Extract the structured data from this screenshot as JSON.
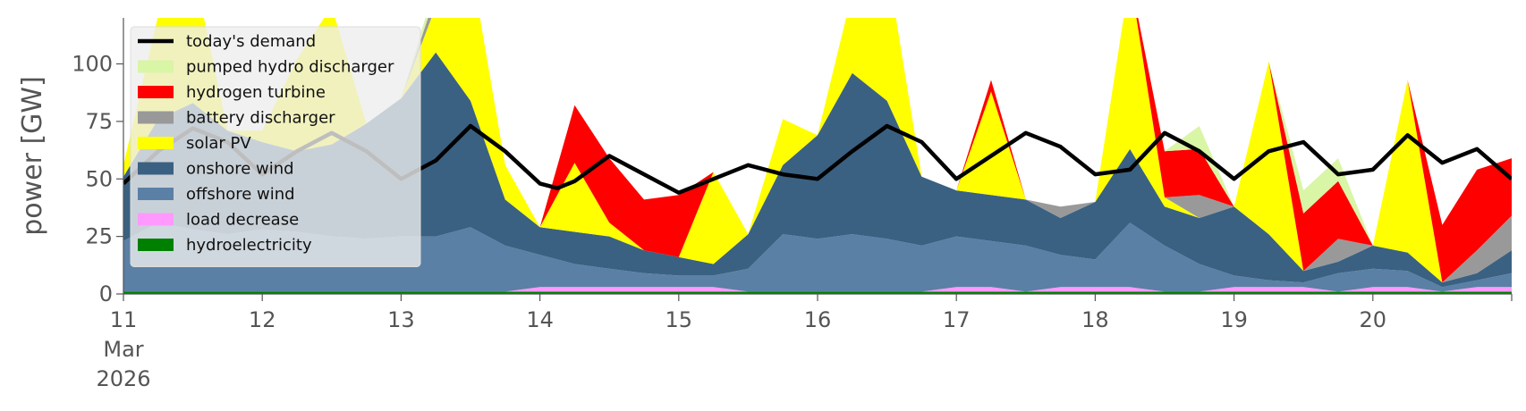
{
  "chart_data": {
    "type": "area",
    "ylabel": "power [GW]",
    "xlabel": "",
    "ylim": [
      0,
      120
    ],
    "xlim_days": [
      0,
      10
    ],
    "x_unit": "days since 11 Mar 2026, 00:00",
    "y_ticks": [
      0,
      25,
      50,
      75,
      100
    ],
    "x_ticks": [
      {
        "day": 0,
        "lines": [
          "11",
          "Mar",
          "2026"
        ]
      },
      {
        "day": 1,
        "lines": [
          "12"
        ]
      },
      {
        "day": 2,
        "lines": [
          "13"
        ]
      },
      {
        "day": 3,
        "lines": [
          "14"
        ]
      },
      {
        "day": 4,
        "lines": [
          "15"
        ]
      },
      {
        "day": 5,
        "lines": [
          "16"
        ]
      },
      {
        "day": 6,
        "lines": [
          "17"
        ]
      },
      {
        "day": 7,
        "lines": [
          "18"
        ]
      },
      {
        "day": 8,
        "lines": [
          "19"
        ]
      },
      {
        "day": 9,
        "lines": [
          "20"
        ]
      }
    ],
    "grid": false,
    "legend_position": "top-left",
    "x": [
      0,
      0.25,
      0.5,
      0.75,
      1,
      1.25,
      1.5,
      1.75,
      2,
      2.25,
      2.5,
      2.75,
      3,
      3.25,
      3.5,
      3.75,
      4,
      4.25,
      4.5,
      4.75,
      5,
      5.25,
      5.5,
      5.75,
      6,
      6.25,
      6.5,
      6.75,
      7,
      7.25,
      7.5,
      7.75,
      8,
      8.25,
      8.5,
      8.75,
      9,
      9.25,
      9.5,
      9.75,
      10
    ],
    "stack_order": [
      "hydroelectricity",
      "load decrease",
      "offshore wind",
      "onshore wind",
      "solar PV",
      "battery discharger",
      "hydrogen turbine",
      "pumped hydro discharger"
    ],
    "series": [
      {
        "name": "hydroelectricity",
        "color": "#008000",
        "values": [
          1,
          1,
          1,
          1,
          1,
          1,
          1,
          1,
          1,
          1,
          1,
          1,
          1,
          1,
          1,
          1,
          1,
          1,
          1,
          1,
          1,
          1,
          1,
          1,
          1,
          1,
          1,
          1,
          1,
          1,
          1,
          1,
          1,
          1,
          1,
          1,
          1,
          1,
          1,
          1,
          1
        ]
      },
      {
        "name": "load decrease",
        "color": "#ff99ff",
        "values": [
          0,
          0,
          0,
          0,
          0,
          0,
          0,
          0,
          0,
          0,
          0,
          0,
          2,
          2,
          2,
          2,
          2,
          2,
          0,
          0,
          0,
          0,
          0,
          0,
          2,
          2,
          0,
          2,
          2,
          2,
          0,
          0,
          2,
          2,
          2,
          0,
          2,
          2,
          0,
          2,
          2
        ]
      },
      {
        "name": "offshore wind",
        "color": "#5b80a5",
        "values": [
          22,
          30,
          27,
          25,
          27,
          26,
          24,
          23,
          24,
          24,
          28,
          20,
          14,
          10,
          8,
          6,
          5,
          5,
          10,
          25,
          23,
          25,
          23,
          20,
          22,
          20,
          20,
          14,
          12,
          28,
          20,
          12,
          5,
          3,
          2,
          8,
          8,
          7,
          2,
          3,
          6
        ]
      },
      {
        "name": "onshore wind",
        "color": "#3a6182",
        "values": [
          28,
          45,
          55,
          45,
          38,
          35,
          40,
          50,
          60,
          80,
          55,
          20,
          12,
          14,
          14,
          10,
          8,
          5,
          15,
          30,
          45,
          70,
          60,
          30,
          20,
          20,
          20,
          16,
          25,
          32,
          17,
          20,
          30,
          20,
          5,
          5,
          10,
          8,
          2,
          3,
          10
        ]
      },
      {
        "name": "solar PV",
        "color": "#ffff00",
        "values": [
          5,
          45,
          60,
          0,
          5,
          40,
          60,
          0,
          0,
          20,
          60,
          15,
          0,
          30,
          6,
          0,
          0,
          40,
          0,
          20,
          0,
          35,
          60,
          0,
          0,
          45,
          0,
          0,
          0,
          75,
          4,
          0,
          0,
          75,
          0,
          0,
          0,
          75,
          0,
          0,
          0
        ]
      },
      {
        "name": "battery discharger",
        "color": "#999999",
        "values": [
          0,
          0,
          0,
          0,
          0,
          0,
          0,
          0,
          0,
          5,
          0,
          0,
          0,
          0,
          0,
          0,
          0,
          0,
          0,
          0,
          0,
          0,
          0,
          0,
          0,
          0,
          0,
          5,
          0,
          0,
          0,
          10,
          0,
          0,
          0,
          10,
          0,
          0,
          0,
          10,
          15
        ]
      },
      {
        "name": "hydrogen turbine",
        "color": "#ff0000",
        "values": [
          0,
          0,
          0,
          0,
          0,
          0,
          0,
          0,
          0,
          0,
          0,
          0,
          0,
          25,
          28,
          22,
          27,
          0,
          0,
          0,
          0,
          0,
          0,
          0,
          0,
          5,
          0,
          0,
          0,
          0,
          20,
          20,
          0,
          0,
          25,
          25,
          0,
          0,
          25,
          35,
          25
        ]
      },
      {
        "name": "pumped hydro discharger",
        "color": "#d9f5a6",
        "values": [
          0,
          0,
          0,
          0,
          0,
          0,
          0,
          0,
          0,
          5,
          0,
          0,
          0,
          0,
          0,
          0,
          0,
          0,
          0,
          0,
          0,
          0,
          0,
          0,
          0,
          0,
          0,
          0,
          0,
          0,
          0,
          10,
          0,
          0,
          10,
          10,
          0,
          0,
          0,
          0,
          0
        ]
      }
    ],
    "line": {
      "name": "today's demand",
      "color": "#000000",
      "x": [
        0,
        0.25,
        0.5,
        0.75,
        1,
        1.25,
        1.5,
        1.75,
        2,
        2.25,
        2.5,
        2.75,
        3,
        3.125,
        3.25,
        3.5,
        3.75,
        4,
        4.25,
        4.5,
        4.75,
        5,
        5.25,
        5.5,
        5.75,
        6,
        6.25,
        6.5,
        6.75,
        7,
        7.25,
        7.5,
        7.75,
        8,
        8.25,
        8.5,
        8.75,
        9,
        9.25,
        9.5,
        9.75,
        10
      ],
      "values": [
        48,
        62,
        72,
        66,
        52,
        62,
        70,
        62,
        50,
        58,
        73,
        62,
        48,
        46,
        49,
        60,
        52,
        44,
        50,
        56,
        52,
        50,
        62,
        73,
        66,
        50,
        60,
        70,
        64,
        52,
        54,
        70,
        62,
        50,
        62,
        66,
        52,
        54,
        69,
        57,
        63,
        50
      ]
    },
    "legend": [
      {
        "label": "today's demand",
        "color": "#000000",
        "kind": "line"
      },
      {
        "label": "pumped hydro discharger",
        "color": "#d9f5a6",
        "kind": "patch"
      },
      {
        "label": "hydrogen turbine",
        "color": "#ff0000",
        "kind": "patch"
      },
      {
        "label": "battery discharger",
        "color": "#999999",
        "kind": "patch"
      },
      {
        "label": "solar PV",
        "color": "#ffff00",
        "kind": "patch"
      },
      {
        "label": "onshore wind",
        "color": "#3a6182",
        "kind": "patch"
      },
      {
        "label": "offshore wind",
        "color": "#5b80a5",
        "kind": "patch"
      },
      {
        "label": "load decrease",
        "color": "#ff99ff",
        "kind": "patch"
      },
      {
        "label": "hydroelectricity",
        "color": "#008000",
        "kind": "patch"
      }
    ]
  }
}
